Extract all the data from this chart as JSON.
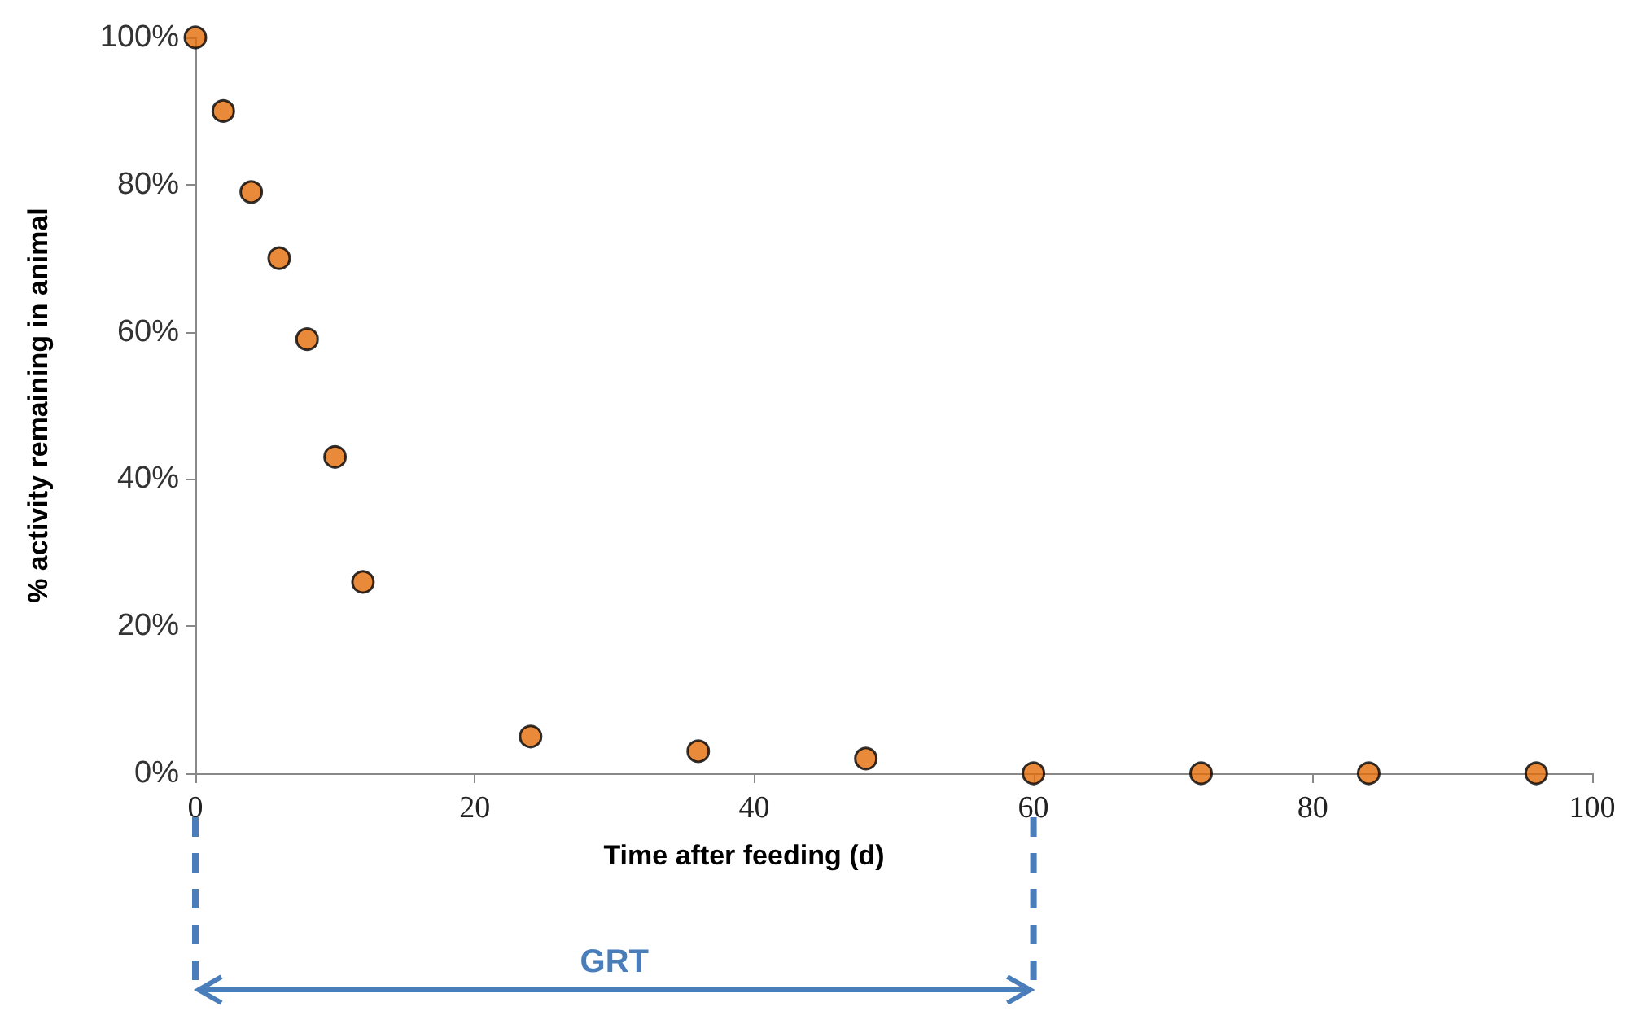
{
  "chart_data": {
    "type": "scatter",
    "xlabel": "Time after feeding (d)",
    "ylabel": "% activity remaining in animal",
    "x": [
      0,
      2,
      4,
      6,
      8,
      10,
      12,
      24,
      36,
      48,
      60,
      72,
      84,
      96
    ],
    "values": [
      100,
      90,
      79,
      70,
      59,
      43,
      26,
      5,
      3,
      2,
      0,
      0,
      0,
      0
    ],
    "color": "#e36c09",
    "marker": "circle",
    "xlim": [
      0,
      100
    ],
    "xticks": [
      0,
      20,
      40,
      60,
      80,
      100
    ],
    "ylim": [
      0,
      100
    ],
    "yticks": [
      {
        "value": 0,
        "label": "0%"
      },
      {
        "value": 20,
        "label": "20%"
      },
      {
        "value": 40,
        "label": "40%"
      },
      {
        "value": 60,
        "label": "60%"
      },
      {
        "value": 80,
        "label": "80%"
      },
      {
        "value": 100,
        "label": "100%"
      }
    ],
    "grid": false,
    "annotations": [
      "GRT"
    ]
  }
}
